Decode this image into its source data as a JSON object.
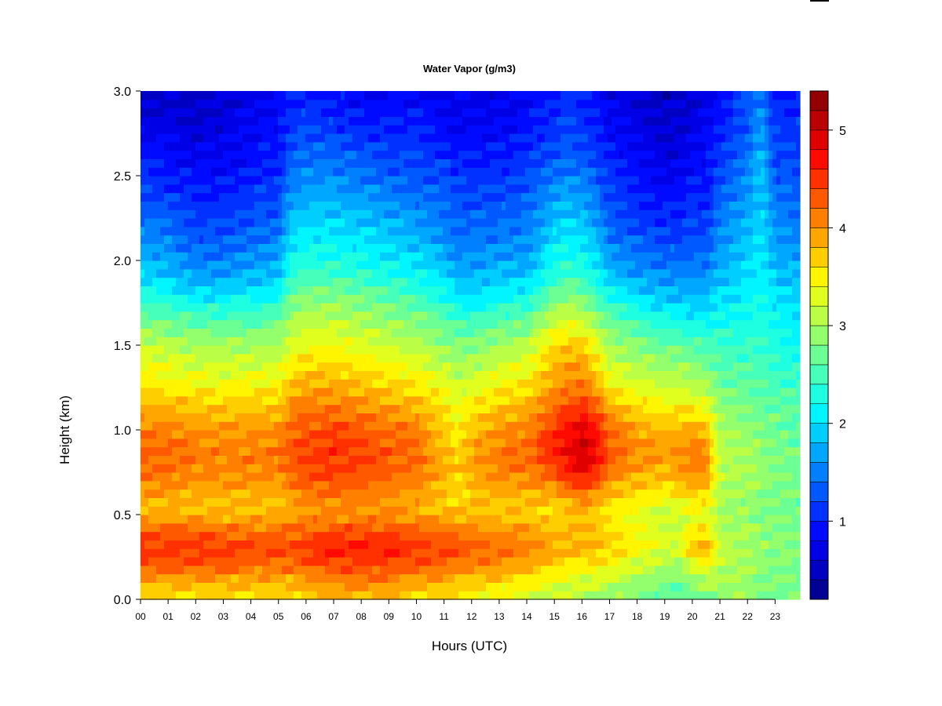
{
  "chart_data": {
    "type": "heatmap",
    "title": "Water Vapor (g/m3)",
    "xlabel": "Hours (UTC)",
    "ylabel": "Height (km)",
    "x_ticks": [
      "00",
      "01",
      "02",
      "03",
      "04",
      "05",
      "06",
      "07",
      "08",
      "09",
      "10",
      "11",
      "12",
      "13",
      "14",
      "15",
      "16",
      "17",
      "18",
      "19",
      "20",
      "21",
      "22",
      "23"
    ],
    "xlim": [
      0,
      23.9
    ],
    "y_ticks": [
      "0.0",
      "0.5",
      "1.0",
      "1.5",
      "2.0",
      "2.5",
      "3.0"
    ],
    "ylim": [
      0,
      3.0
    ],
    "colorbar": {
      "label": "",
      "range": [
        0.2,
        5.4
      ],
      "levels": 26,
      "ticks": [
        "1",
        "2",
        "3",
        "4",
        "5"
      ],
      "colors": [
        "#00007f",
        "#0000c8",
        "#0000ff",
        "#0040ff",
        "#0080ff",
        "#00bfff",
        "#00ffff",
        "#40ffbf",
        "#80ff80",
        "#bfff40",
        "#ffff00",
        "#ffbf00",
        "#ff8000",
        "#ff4000",
        "#ff0000",
        "#bf0000",
        "#7f0000"
      ]
    },
    "x_hours": [
      0,
      1,
      2,
      3,
      4,
      5,
      5.5,
      6,
      7,
      8,
      9,
      10,
      11,
      11.5,
      12,
      13,
      14,
      15,
      15.5,
      16,
      16.5,
      17,
      18,
      19,
      19.5,
      20,
      20.5,
      21,
      22,
      22.5,
      23,
      23.9
    ],
    "y_levels_km": [
      0,
      0.1,
      0.2,
      0.3,
      0.4,
      0.5,
      0.6,
      0.7,
      0.8,
      0.9,
      1.0,
      1.1,
      1.2,
      1.3,
      1.4,
      1.5,
      1.6,
      1.7,
      1.8,
      1.9,
      2.0,
      2.2,
      2.4,
      2.6,
      2.8,
      3.0
    ],
    "profiles_g_m3": [
      [
        3.6,
        3.8,
        4.3,
        4.5,
        4.3,
        3.8,
        3.9,
        4.1,
        4.2,
        4.2,
        4.1,
        3.9,
        3.7,
        3.5,
        3.4,
        3.2,
        2.9,
        2.6,
        2.3,
        2.0,
        1.8,
        1.5,
        1.2,
        1.0,
        0.7,
        0.5
      ],
      [
        3.6,
        3.8,
        4.3,
        4.5,
        4.3,
        3.8,
        3.9,
        4.1,
        4.2,
        4.2,
        4.1,
        3.9,
        3.7,
        3.4,
        3.3,
        3.1,
        2.8,
        2.5,
        2.2,
        1.9,
        1.7,
        1.4,
        1.1,
        0.9,
        0.7,
        0.5
      ],
      [
        3.6,
        3.8,
        4.3,
        4.5,
        4.3,
        3.8,
        3.8,
        4.0,
        4.1,
        4.1,
        4.0,
        3.8,
        3.6,
        3.4,
        3.2,
        3.0,
        2.7,
        2.4,
        2.0,
        1.7,
        1.5,
        1.2,
        1.0,
        0.8,
        0.6,
        0.5
      ],
      [
        3.6,
        3.8,
        4.3,
        4.5,
        4.2,
        3.8,
        3.8,
        4.0,
        4.1,
        4.1,
        4.0,
        3.8,
        3.6,
        3.3,
        3.2,
        3.0,
        2.7,
        2.4,
        2.0,
        1.7,
        1.5,
        1.2,
        1.0,
        0.8,
        0.7,
        0.6
      ],
      [
        3.6,
        3.8,
        4.2,
        4.4,
        4.2,
        3.8,
        3.8,
        4.0,
        4.1,
        4.1,
        4.0,
        3.8,
        3.6,
        3.4,
        3.2,
        3.0,
        2.7,
        2.4,
        2.1,
        1.8,
        1.6,
        1.3,
        1.1,
        0.9,
        0.8,
        0.7
      ],
      [
        3.6,
        3.8,
        4.2,
        4.4,
        4.2,
        3.8,
        3.8,
        4.0,
        4.1,
        4.1,
        4.0,
        3.8,
        3.6,
        3.4,
        3.2,
        3.0,
        2.8,
        2.5,
        2.2,
        1.9,
        1.7,
        1.4,
        1.2,
        1.0,
        0.9,
        0.8
      ],
      [
        3.6,
        3.8,
        4.2,
        4.4,
        4.2,
        3.9,
        4.0,
        4.2,
        4.3,
        4.3,
        4.2,
        4.1,
        3.9,
        3.7,
        3.5,
        3.3,
        3.1,
        2.9,
        2.7,
        2.4,
        2.2,
        1.9,
        1.6,
        1.3,
        1.1,
        0.9
      ],
      [
        3.7,
        3.9,
        4.3,
        4.5,
        4.3,
        4.0,
        4.1,
        4.3,
        4.4,
        4.4,
        4.3,
        4.2,
        4.0,
        3.8,
        3.6,
        3.4,
        3.2,
        3.0,
        2.8,
        2.5,
        2.3,
        2.0,
        1.7,
        1.4,
        1.2,
        1.0
      ],
      [
        3.8,
        4.0,
        4.4,
        4.6,
        4.4,
        4.0,
        4.1,
        4.4,
        4.5,
        4.5,
        4.4,
        4.2,
        4.0,
        3.8,
        3.6,
        3.4,
        3.2,
        3.0,
        2.8,
        2.5,
        2.3,
        2.0,
        1.7,
        1.4,
        1.1,
        0.9
      ],
      [
        3.8,
        4.1,
        4.4,
        4.6,
        4.4,
        4.0,
        4.1,
        4.3,
        4.4,
        4.4,
        4.3,
        4.1,
        3.9,
        3.7,
        3.5,
        3.3,
        3.1,
        2.9,
        2.7,
        2.4,
        2.2,
        1.9,
        1.6,
        1.3,
        1.0,
        0.8
      ],
      [
        3.7,
        4.0,
        4.4,
        4.6,
        4.4,
        4.0,
        4.0,
        4.2,
        4.3,
        4.3,
        4.2,
        4.0,
        3.8,
        3.6,
        3.4,
        3.2,
        3.0,
        2.8,
        2.6,
        2.3,
        2.1,
        1.8,
        1.5,
        1.2,
        1.0,
        0.8
      ],
      [
        3.6,
        3.9,
        4.3,
        4.5,
        4.3,
        3.9,
        3.9,
        4.1,
        4.2,
        4.2,
        4.1,
        3.9,
        3.7,
        3.5,
        3.3,
        3.1,
        2.9,
        2.7,
        2.4,
        2.2,
        2.0,
        1.7,
        1.4,
        1.2,
        1.0,
        0.8
      ],
      [
        3.6,
        3.8,
        4.2,
        4.4,
        4.2,
        3.8,
        3.7,
        3.8,
        3.9,
        3.8,
        3.7,
        3.6,
        3.5,
        3.3,
        3.1,
        2.9,
        2.7,
        2.5,
        2.2,
        2.0,
        1.8,
        1.5,
        1.3,
        1.1,
        0.9,
        0.7
      ],
      [
        3.5,
        3.7,
        4.1,
        4.4,
        4.2,
        3.8,
        3.6,
        3.6,
        3.7,
        3.6,
        3.5,
        3.4,
        3.3,
        3.1,
        3.0,
        2.8,
        2.6,
        2.3,
        2.0,
        1.8,
        1.6,
        1.4,
        1.2,
        1.0,
        0.8,
        0.7
      ],
      [
        3.5,
        3.7,
        4.1,
        4.3,
        4.1,
        3.8,
        3.7,
        3.8,
        3.9,
        3.9,
        3.8,
        3.6,
        3.4,
        3.2,
        3.0,
        2.8,
        2.6,
        2.3,
        2.0,
        1.8,
        1.6,
        1.4,
        1.2,
        1.0,
        0.8,
        0.7
      ],
      [
        3.3,
        3.6,
        4.0,
        4.2,
        4.0,
        3.7,
        3.8,
        4.0,
        4.1,
        4.1,
        4.0,
        3.8,
        3.6,
        3.4,
        3.2,
        3.0,
        2.7,
        2.4,
        2.1,
        1.9,
        1.7,
        1.4,
        1.2,
        1.0,
        0.8,
        0.7
      ],
      [
        3.2,
        3.5,
        3.9,
        4.1,
        4.0,
        3.7,
        3.8,
        4.0,
        4.2,
        4.2,
        4.1,
        3.9,
        3.7,
        3.5,
        3.3,
        3.1,
        2.8,
        2.5,
        2.2,
        1.9,
        1.7,
        1.5,
        1.3,
        1.1,
        0.9,
        0.8
      ],
      [
        3.1,
        3.3,
        3.6,
        3.9,
        3.8,
        3.6,
        3.8,
        4.2,
        4.5,
        4.6,
        4.5,
        4.3,
        4.1,
        3.9,
        3.8,
        3.6,
        3.3,
        3.0,
        2.7,
        2.4,
        2.2,
        1.9,
        1.6,
        1.3,
        1.1,
        1.0
      ],
      [
        3.1,
        3.3,
        3.6,
        3.9,
        3.8,
        3.7,
        3.9,
        4.4,
        4.7,
        4.8,
        4.7,
        4.5,
        4.2,
        4.0,
        3.9,
        3.7,
        3.4,
        3.1,
        2.8,
        2.5,
        2.3,
        2.0,
        1.7,
        1.4,
        1.2,
        1.1
      ],
      [
        3.0,
        3.2,
        3.5,
        3.8,
        3.8,
        3.8,
        4.1,
        4.6,
        4.9,
        5.0,
        4.9,
        4.6,
        4.3,
        4.1,
        3.9,
        3.7,
        3.3,
        3.0,
        2.7,
        2.4,
        2.2,
        1.9,
        1.6,
        1.3,
        1.1,
        1.0
      ],
      [
        3.0,
        3.2,
        3.5,
        3.8,
        3.8,
        3.7,
        3.9,
        4.4,
        4.7,
        4.8,
        4.7,
        4.4,
        4.1,
        3.8,
        3.6,
        3.4,
        3.1,
        2.8,
        2.5,
        2.2,
        2.0,
        1.7,
        1.4,
        1.2,
        1.0,
        0.9
      ],
      [
        2.9,
        3.1,
        3.4,
        3.7,
        3.6,
        3.5,
        3.7,
        4.0,
        4.3,
        4.3,
        4.2,
        4.0,
        3.7,
        3.4,
        3.2,
        3.0,
        2.8,
        2.5,
        2.2,
        1.9,
        1.7,
        1.4,
        1.2,
        1.0,
        0.8,
        0.7
      ],
      [
        2.8,
        2.9,
        3.2,
        3.5,
        3.4,
        3.3,
        3.5,
        3.8,
        4.0,
        4.0,
        3.9,
        3.7,
        3.5,
        3.2,
        3.0,
        2.8,
        2.6,
        2.3,
        2.0,
        1.7,
        1.5,
        1.2,
        1.0,
        0.8,
        0.7,
        0.6
      ],
      [
        2.6,
        2.8,
        3.0,
        3.3,
        3.2,
        3.2,
        3.4,
        3.7,
        3.9,
        3.9,
        3.8,
        3.6,
        3.3,
        3.1,
        2.9,
        2.7,
        2.4,
        2.1,
        1.8,
        1.6,
        1.4,
        1.1,
        0.9,
        0.7,
        0.6,
        0.5
      ],
      [
        2.5,
        2.7,
        2.9,
        3.3,
        3.2,
        3.2,
        3.5,
        3.8,
        4.0,
        4.0,
        3.8,
        3.6,
        3.3,
        3.1,
        2.9,
        2.7,
        2.4,
        2.1,
        1.8,
        1.6,
        1.4,
        1.1,
        0.9,
        0.7,
        0.6,
        0.5
      ],
      [
        2.7,
        2.9,
        3.3,
        3.8,
        3.5,
        3.3,
        3.6,
        3.9,
        4.1,
        4.1,
        3.9,
        3.6,
        3.3,
        3.0,
        2.8,
        2.6,
        2.3,
        2.0,
        1.8,
        1.6,
        1.4,
        1.2,
        1.0,
        0.8,
        0.7,
        0.6
      ],
      [
        2.8,
        3.0,
        3.4,
        3.9,
        3.6,
        3.3,
        3.6,
        3.9,
        4.1,
        4.0,
        3.8,
        3.5,
        3.2,
        2.9,
        2.7,
        2.5,
        2.3,
        2.0,
        1.8,
        1.6,
        1.4,
        1.2,
        1.0,
        0.9,
        0.8,
        0.7
      ],
      [
        2.9,
        3.0,
        3.1,
        3.2,
        3.1,
        3.0,
        3.0,
        3.1,
        3.1,
        3.1,
        3.0,
        2.9,
        2.8,
        2.7,
        2.6,
        2.5,
        2.3,
        2.1,
        2.0,
        1.8,
        1.7,
        1.5,
        1.3,
        1.1,
        1.0,
        0.9
      ],
      [
        2.9,
        2.9,
        3.0,
        3.0,
        3.0,
        2.9,
        2.9,
        3.0,
        3.0,
        3.0,
        2.9,
        2.8,
        2.7,
        2.6,
        2.5,
        2.4,
        2.3,
        2.2,
        2.1,
        2.0,
        1.9,
        1.8,
        1.6,
        1.5,
        1.3,
        1.2
      ],
      [
        2.8,
        2.8,
        2.9,
        2.9,
        2.9,
        2.8,
        2.8,
        2.9,
        2.9,
        2.9,
        2.8,
        2.7,
        2.6,
        2.6,
        2.5,
        2.4,
        2.3,
        2.3,
        2.2,
        2.1,
        2.1,
        2.0,
        1.9,
        1.8,
        1.6,
        1.5
      ],
      [
        2.8,
        2.8,
        2.8,
        2.9,
        2.8,
        2.8,
        2.8,
        2.8,
        2.8,
        2.8,
        2.7,
        2.7,
        2.6,
        2.5,
        2.4,
        2.3,
        2.2,
        2.1,
        2.0,
        1.9,
        1.8,
        1.6,
        1.4,
        1.2,
        1.1,
        1.0
      ],
      [
        2.7,
        2.7,
        2.8,
        2.8,
        2.8,
        2.7,
        2.7,
        2.7,
        2.7,
        2.7,
        2.6,
        2.6,
        2.5,
        2.4,
        2.3,
        2.2,
        2.1,
        2.0,
        1.9,
        1.8,
        1.7,
        1.5,
        1.3,
        1.2,
        1.1,
        1.0
      ]
    ]
  }
}
